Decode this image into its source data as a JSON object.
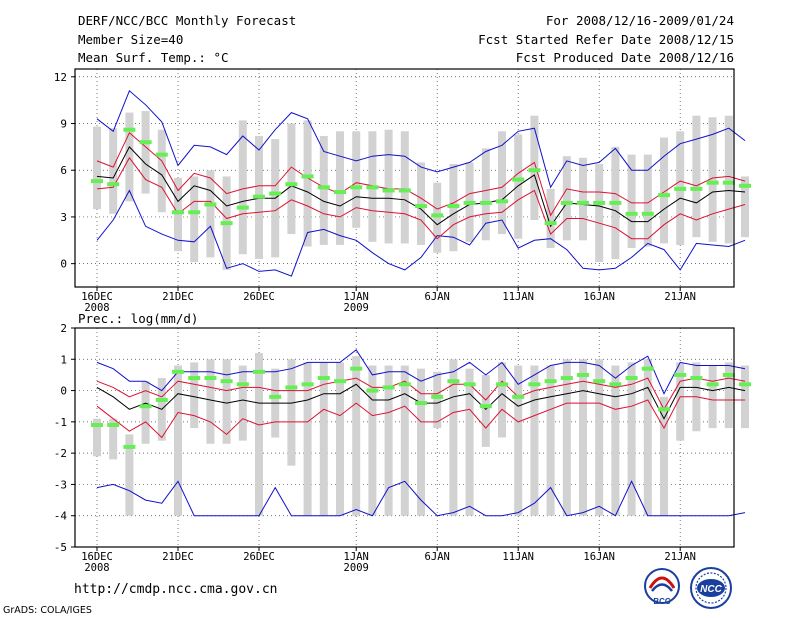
{
  "header": {
    "title": "DERF/NCC/BCC Monthly Forecast",
    "member_size": "Member Size=40",
    "variable": "Mean Surf. Temp.: °C",
    "period": "For 2008/12/16-2009/01/24",
    "started": "Fcst Started Refer Date 2008/12/15",
    "produced": "Fcst Produced Date 2008/12/16"
  },
  "footer": {
    "url": "http://cmdp.ncc.cma.gov.cn",
    "grads": "GrADS: COLA/IGES",
    "logo_bcc": "BCC",
    "logo_ncc": "NCC"
  },
  "colors": {
    "box": "#d2d2d2",
    "marker": "#66ee55",
    "mean": "#000000",
    "spread": "#dd1133",
    "extreme": "#1111cc",
    "grid": "#444444"
  },
  "chart_data": [
    {
      "type": "box-ensemble",
      "title": "Mean Surf. Temp.: °C",
      "ylim": [
        -1.5,
        12.5
      ],
      "yticks": [
        0,
        3,
        6,
        9,
        12
      ],
      "xticks": [
        {
          "day": 0,
          "label": "16DEC",
          "sub": "2008"
        },
        {
          "day": 5,
          "label": "21DEC"
        },
        {
          "day": 10,
          "label": "26DEC"
        },
        {
          "day": 16,
          "label": "1JAN",
          "sub": "2009"
        },
        {
          "day": 21,
          "label": "6JAN"
        },
        {
          "day": 26,
          "label": "11JAN"
        },
        {
          "day": 31,
          "label": "16JAN"
        },
        {
          "day": 36,
          "label": "21JAN"
        }
      ],
      "marker": [
        5.3,
        5.1,
        8.6,
        7.8,
        7.0,
        3.3,
        3.3,
        3.8,
        2.6,
        3.6,
        4.3,
        4.5,
        5.1,
        5.6,
        4.9,
        4.6,
        4.9,
        4.9,
        4.7,
        4.7,
        3.7,
        3.1,
        3.7,
        3.9,
        3.9,
        4.0,
        5.4,
        6.0,
        2.6,
        3.9,
        3.9,
        3.9,
        3.9,
        3.2,
        3.2,
        4.4,
        4.8,
        4.8,
        5.2,
        5.2,
        5.0
      ],
      "box_high": [
        8.8,
        8.7,
        9.7,
        9.8,
        8.6,
        5.5,
        5.6,
        6.0,
        5.6,
        9.2,
        8.2,
        8.0,
        9.0,
        9.2,
        8.2,
        8.5,
        8.5,
        8.5,
        8.6,
        8.5,
        6.5,
        5.2,
        6.4,
        6.5,
        7.4,
        8.5,
        8.3,
        9.5,
        4.8,
        6.9,
        6.8,
        6.4,
        7.5,
        7.0,
        7.0,
        8.1,
        8.5,
        9.5,
        9.4,
        9.5,
        5.6
      ],
      "box_low": [
        3.5,
        3.2,
        4.0,
        4.5,
        3.3,
        0.8,
        0.1,
        0.4,
        -0.4,
        0.6,
        0.3,
        0.4,
        1.9,
        1.1,
        1.2,
        1.2,
        2.3,
        1.4,
        1.3,
        1.3,
        1.2,
        0.7,
        0.8,
        1.4,
        1.5,
        1.9,
        1.6,
        2.8,
        1.0,
        1.5,
        1.5,
        0.1,
        0.3,
        1.0,
        1.1,
        1.3,
        1.2,
        1.7,
        1.4,
        1.3,
        1.7
      ],
      "mean": [
        5.6,
        5.5,
        7.5,
        6.4,
        5.7,
        4.0,
        5.0,
        4.7,
        3.7,
        4.0,
        4.2,
        4.2,
        5.0,
        4.6,
        4.0,
        3.7,
        4.3,
        4.2,
        4.2,
        4.1,
        3.5,
        2.5,
        3.2,
        3.8,
        3.9,
        4.1,
        5.0,
        5.7,
        2.4,
        3.9,
        3.8,
        3.7,
        3.4,
        2.7,
        2.7,
        3.5,
        4.2,
        3.9,
        4.6,
        4.7,
        4.6
      ],
      "upper": [
        6.6,
        6.2,
        8.4,
        7.5,
        6.6,
        4.7,
        5.8,
        5.5,
        4.5,
        4.8,
        5.0,
        5.0,
        6.2,
        5.5,
        4.9,
        4.5,
        5.2,
        5.0,
        4.8,
        4.8,
        4.2,
        3.5,
        3.9,
        4.5,
        4.7,
        4.9,
        5.8,
        6.5,
        3.1,
        4.8,
        4.6,
        4.6,
        4.5,
        3.9,
        3.9,
        4.6,
        5.3,
        5.0,
        5.5,
        5.6,
        5.3
      ],
      "lower": [
        4.8,
        4.9,
        6.8,
        5.4,
        4.9,
        3.2,
        4.0,
        4.0,
        2.9,
        3.2,
        3.3,
        3.4,
        4.1,
        3.7,
        3.2,
        3.0,
        3.6,
        3.4,
        3.3,
        3.2,
        2.8,
        1.6,
        2.5,
        3.0,
        3.2,
        3.3,
        4.1,
        4.7,
        1.9,
        2.9,
        2.9,
        2.6,
        2.3,
        1.6,
        1.6,
        2.5,
        3.2,
        2.8,
        3.2,
        3.5,
        3.8
      ],
      "max": [
        9.3,
        8.5,
        11.1,
        10.2,
        9.1,
        6.3,
        7.6,
        7.5,
        7.0,
        8.2,
        7.3,
        8.6,
        9.7,
        9.3,
        7.2,
        6.9,
        6.6,
        6.9,
        7.0,
        6.9,
        6.2,
        5.9,
        6.2,
        6.5,
        7.2,
        7.6,
        8.5,
        8.7,
        4.9,
        6.6,
        6.3,
        6.5,
        7.4,
        6.0,
        6.0,
        6.9,
        7.7,
        8.0,
        8.3,
        8.7,
        7.9
      ],
      "min": [
        1.5,
        2.8,
        4.7,
        2.4,
        1.9,
        1.5,
        1.4,
        2.4,
        -0.3,
        0.0,
        -0.5,
        -0.4,
        -0.8,
        2.0,
        2.2,
        1.8,
        1.5,
        0.7,
        0.0,
        -0.4,
        0.4,
        1.8,
        1.7,
        1.2,
        2.6,
        2.8,
        1.0,
        1.5,
        1.6,
        0.9,
        -0.3,
        -0.4,
        -0.3,
        0.4,
        1.3,
        0.9,
        -0.4,
        1.3,
        1.2,
        1.1,
        1.5
      ]
    },
    {
      "type": "box-ensemble",
      "title": "Prec.: log(mm/d)",
      "ylim": [
        -5,
        2
      ],
      "yticks": [
        -5,
        -4,
        -3,
        -2,
        -1,
        0,
        1,
        2
      ],
      "xticks": [
        {
          "day": 0,
          "label": "16DEC",
          "sub": "2008"
        },
        {
          "day": 5,
          "label": "21DEC"
        },
        {
          "day": 10,
          "label": "26DEC"
        },
        {
          "day": 16,
          "label": "1JAN",
          "sub": "2009"
        },
        {
          "day": 21,
          "label": "6JAN"
        },
        {
          "day": 26,
          "label": "11JAN"
        },
        {
          "day": 31,
          "label": "16JAN"
        },
        {
          "day": 36,
          "label": "21JAN"
        }
      ],
      "marker": [
        -1.1,
        -1.1,
        -1.8,
        -0.5,
        -0.3,
        0.6,
        0.4,
        0.4,
        0.3,
        0.2,
        0.6,
        -0.2,
        0.1,
        0.2,
        0.4,
        0.3,
        0.7,
        0.0,
        0.1,
        0.2,
        -0.4,
        -0.2,
        0.3,
        0.2,
        -0.5,
        0.2,
        -0.2,
        0.2,
        0.3,
        0.4,
        0.5,
        0.3,
        0.2,
        0.4,
        0.7,
        -0.6,
        0.5,
        0.4,
        0.2,
        0.5,
        0.2
      ],
      "box_high": [
        -0.9,
        -0.9,
        -1.4,
        0.3,
        0.4,
        0.8,
        0.9,
        1.0,
        1.0,
        0.8,
        1.2,
        0.7,
        1.0,
        0.9,
        0.9,
        0.9,
        1.1,
        0.8,
        0.8,
        0.8,
        0.7,
        0.6,
        1.0,
        0.7,
        0.5,
        0.9,
        0.8,
        0.8,
        0.8,
        1.0,
        1.0,
        1.0,
        0.8,
        0.9,
        1.0,
        -0.2,
        0.9,
        0.9,
        0.8,
        0.9,
        0.8
      ],
      "box_low": [
        -2.1,
        -2.2,
        -4.0,
        -1.7,
        -1.6,
        -4.0,
        -1.2,
        -1.7,
        -1.7,
        -1.6,
        -4.0,
        -1.5,
        -2.4,
        -4.0,
        -4.0,
        -4.0,
        -4.0,
        -4.0,
        -4.0,
        -4.0,
        -4.0,
        -1.2,
        -4.0,
        -4.0,
        -1.8,
        -1.5,
        -4.0,
        -4.0,
        -4.0,
        -4.0,
        -4.0,
        -4.0,
        -4.0,
        -4.0,
        -4.0,
        -4.0,
        -1.6,
        -1.3,
        -1.2,
        -1.2,
        -1.2
      ],
      "mean": [
        0.1,
        -0.2,
        -0.6,
        -0.4,
        -0.6,
        -0.1,
        -0.2,
        -0.3,
        -0.4,
        -0.3,
        -0.4,
        -0.4,
        -0.4,
        -0.3,
        -0.1,
        -0.1,
        0.2,
        -0.3,
        -0.3,
        -0.1,
        -0.4,
        -0.4,
        -0.2,
        -0.1,
        -0.6,
        -0.1,
        -0.5,
        -0.3,
        -0.2,
        -0.1,
        0.0,
        -0.1,
        -0.2,
        -0.1,
        0.1,
        -0.9,
        0.1,
        0.1,
        0.0,
        0.1,
        0.0
      ],
      "upper": [
        0.3,
        0.1,
        -0.2,
        0.0,
        -0.2,
        0.3,
        0.2,
        0.1,
        0.0,
        0.1,
        0.1,
        0.0,
        0.0,
        0.0,
        0.2,
        0.3,
        0.4,
        0.1,
        0.1,
        0.3,
        -0.1,
        -0.1,
        0.2,
        0.2,
        -0.3,
        0.3,
        -0.2,
        0.0,
        0.1,
        0.2,
        0.3,
        0.2,
        0.1,
        0.2,
        0.4,
        -0.6,
        0.3,
        0.4,
        0.3,
        0.4,
        0.3
      ],
      "lower": [
        -0.5,
        -0.9,
        -1.3,
        -1.0,
        -1.5,
        -0.7,
        -0.8,
        -1.0,
        -1.4,
        -0.9,
        -1.1,
        -1.0,
        -1.0,
        -1.0,
        -0.6,
        -0.8,
        -0.4,
        -0.8,
        -0.7,
        -0.5,
        -1.0,
        -1.0,
        -0.7,
        -0.6,
        -1.2,
        -0.6,
        -1.0,
        -0.8,
        -0.6,
        -0.4,
        -0.4,
        -0.4,
        -0.6,
        -0.5,
        -0.3,
        -1.2,
        -0.2,
        -0.2,
        -0.3,
        -0.3,
        -0.3
      ],
      "max": [
        0.9,
        0.7,
        0.3,
        0.3,
        0.0,
        0.6,
        0.6,
        0.6,
        0.5,
        0.6,
        0.6,
        0.6,
        0.7,
        0.9,
        0.9,
        0.9,
        1.3,
        0.5,
        0.6,
        0.6,
        0.3,
        0.5,
        0.6,
        0.9,
        0.5,
        0.9,
        0.2,
        0.5,
        0.8,
        0.9,
        0.9,
        0.8,
        0.4,
        0.8,
        1.1,
        -0.1,
        0.9,
        0.8,
        0.8,
        0.8,
        0.7
      ],
      "min": [
        -3.1,
        -3.0,
        -3.2,
        -3.5,
        -3.6,
        -2.9,
        -4.0,
        -4.0,
        -4.0,
        -4.0,
        -4.0,
        -3.1,
        -4.0,
        -4.0,
        -4.0,
        -4.0,
        -3.8,
        -4.0,
        -3.1,
        -2.9,
        -3.5,
        -4.0,
        -3.9,
        -3.7,
        -4.0,
        -4.0,
        -3.9,
        -3.6,
        -3.1,
        -4.0,
        -3.9,
        -3.7,
        -4.0,
        -2.9,
        -4.0,
        -4.0,
        -4.0,
        -4.0,
        -4.0,
        -4.0,
        -3.9
      ]
    }
  ]
}
